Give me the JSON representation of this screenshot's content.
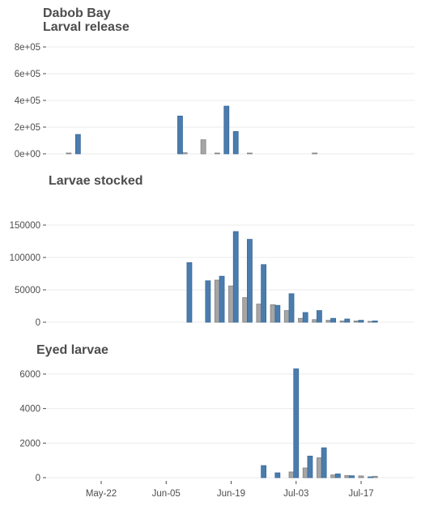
{
  "chart_data": [
    {
      "type": "bar",
      "title": "Dabob Bay\nLarval release",
      "ylim": [
        0,
        800000
      ],
      "yticks": [
        0,
        200000,
        400000,
        600000,
        800000
      ],
      "ytick_labels": [
        "0e+00",
        "2e+05",
        "4e+05",
        "6e+05",
        "8e+05"
      ],
      "grid": true,
      "series": [
        {
          "color": "#a6a6a6",
          "points": [
            [
              "05-15",
              5000
            ],
            [
              "06-09",
              8000
            ],
            [
              "06-13",
              105000
            ],
            [
              "06-16",
              5000
            ],
            [
              "06-23",
              5000
            ],
            [
              "07-07",
              3000
            ]
          ]
        },
        {
          "color": "#4b7cae",
          "points": [
            [
              "05-17",
              145000
            ],
            [
              "06-08",
              283000
            ],
            [
              "06-18",
              357000
            ],
            [
              "06-20",
              167000
            ]
          ]
        }
      ]
    },
    {
      "type": "bar",
      "title": "Larvae stocked",
      "ylim": [
        0,
        160000
      ],
      "yticks": [
        0,
        50000,
        100000,
        150000
      ],
      "ytick_labels": [
        "0",
        "50000",
        "100000",
        "150000"
      ],
      "grid": true,
      "series": [
        {
          "color": "#a6a6a6",
          "points": [
            [
              "06-16",
              65000
            ],
            [
              "06-19",
              56000
            ],
            [
              "06-22",
              38000
            ],
            [
              "06-25",
              28000
            ],
            [
              "06-28",
              27000
            ],
            [
              "07-01",
              18000
            ],
            [
              "07-04",
              6000
            ],
            [
              "07-07",
              4000
            ],
            [
              "07-10",
              3000
            ],
            [
              "07-13",
              2000
            ],
            [
              "07-16",
              2000
            ],
            [
              "07-19",
              1000
            ]
          ]
        },
        {
          "color": "#4b7cae",
          "points": [
            [
              "06-10",
              92000
            ],
            [
              "06-14",
              64000
            ],
            [
              "06-17",
              71000
            ],
            [
              "06-20",
              140000
            ],
            [
              "06-23",
              128000
            ],
            [
              "06-26",
              89000
            ],
            [
              "06-29",
              26000
            ],
            [
              "07-02",
              44000
            ],
            [
              "07-05",
              15000
            ],
            [
              "07-08",
              18000
            ],
            [
              "07-11",
              6000
            ],
            [
              "07-14",
              5000
            ],
            [
              "07-17",
              3000
            ],
            [
              "07-20",
              2000
            ]
          ]
        }
      ]
    },
    {
      "type": "bar",
      "title": "Eyed larvae",
      "ylim": [
        0,
        6600
      ],
      "yticks": [
        0,
        2000,
        4000,
        6000
      ],
      "ytick_labels": [
        "0",
        "2000",
        "4000",
        "6000"
      ],
      "xticks": [
        "05-22",
        "06-05",
        "06-19",
        "07-03",
        "07-17"
      ],
      "xtick_labels": [
        "May-22",
        "Jun-05",
        "Jun-19",
        "Jul-03",
        "Jul-17"
      ],
      "grid": true,
      "series": [
        {
          "color": "#a6a6a6",
          "points": [
            [
              "07-02",
              330
            ],
            [
              "07-05",
              560
            ],
            [
              "07-08",
              1150
            ],
            [
              "07-11",
              160
            ],
            [
              "07-14",
              120
            ],
            [
              "07-17",
              100
            ],
            [
              "07-20",
              80
            ]
          ]
        },
        {
          "color": "#4b7cae",
          "points": [
            [
              "06-26",
              700
            ],
            [
              "06-29",
              280
            ],
            [
              "07-03",
              6300
            ],
            [
              "07-06",
              1250
            ],
            [
              "07-09",
              1730
            ],
            [
              "07-12",
              220
            ],
            [
              "07-15",
              110
            ],
            [
              "07-19",
              40
            ]
          ]
        }
      ]
    }
  ]
}
